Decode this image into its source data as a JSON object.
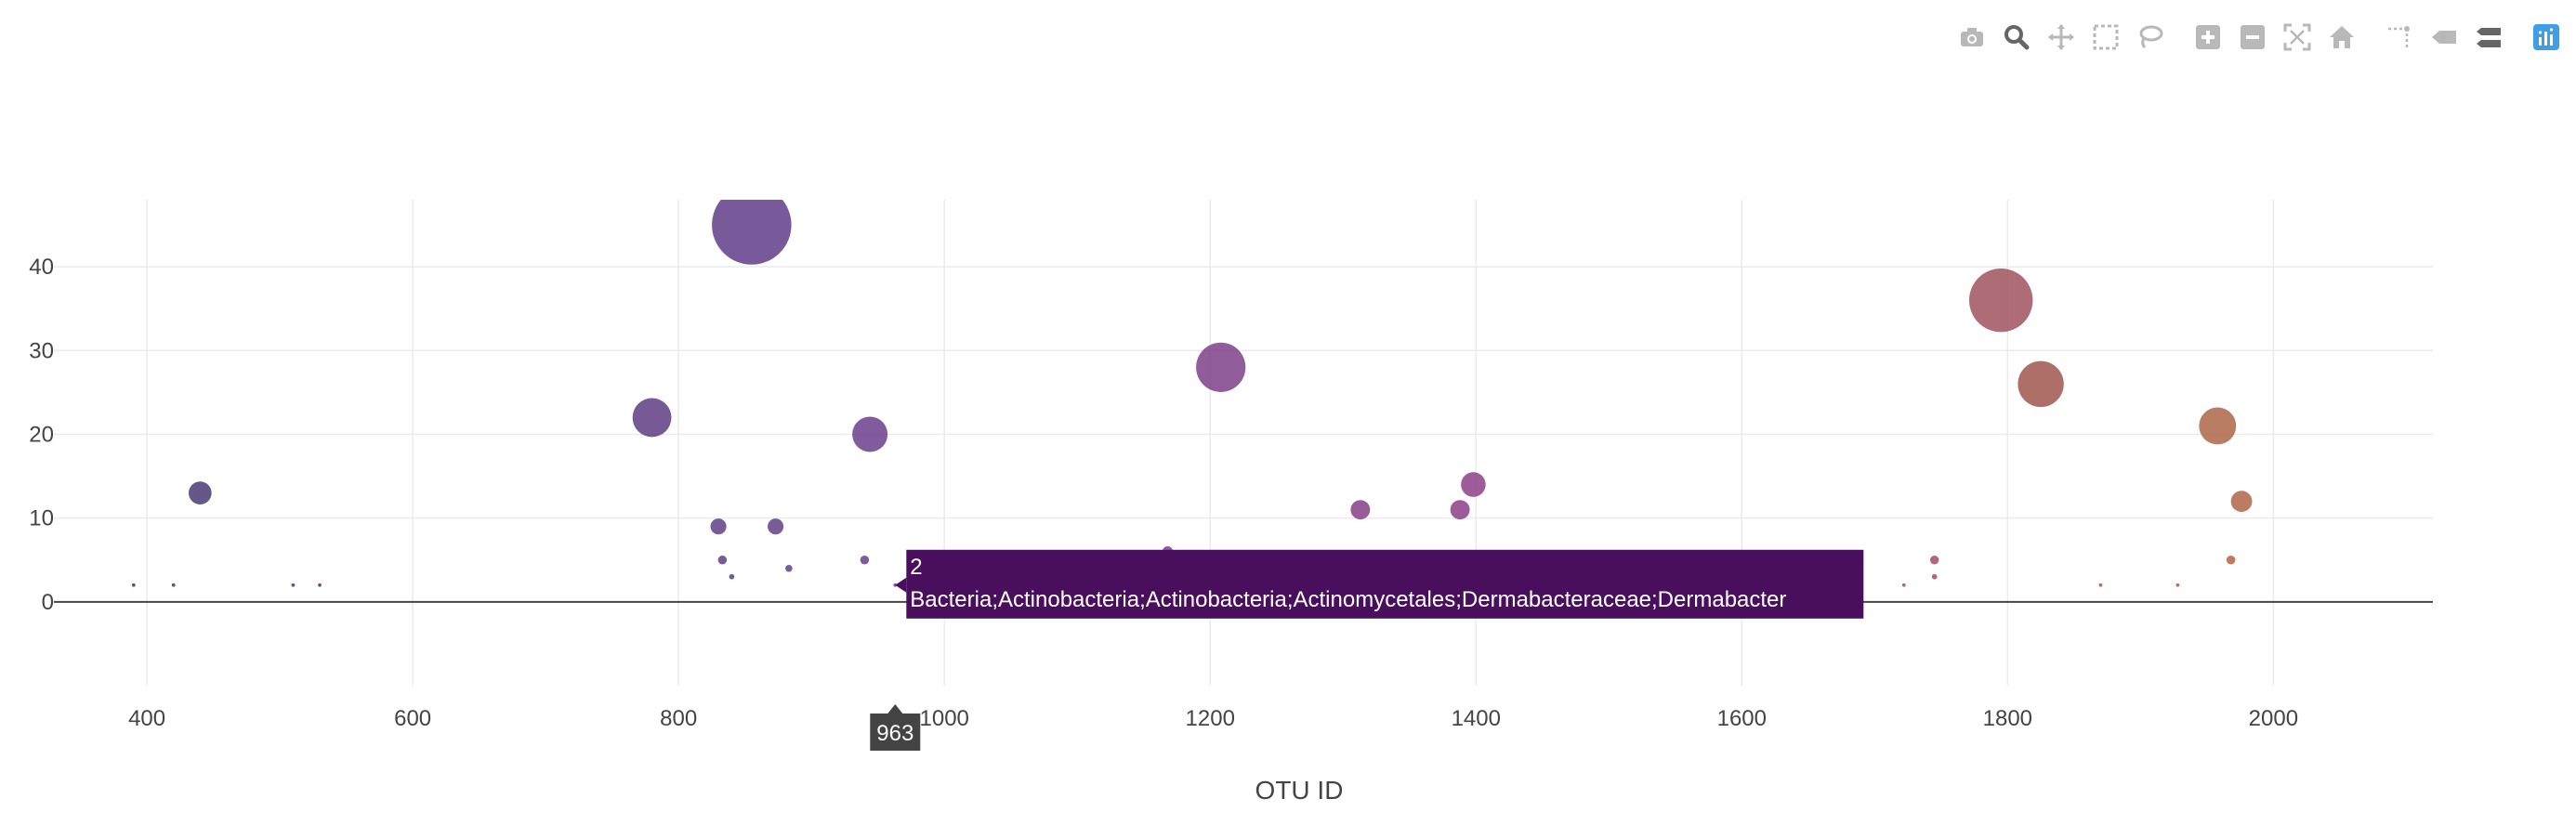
{
  "toolbar": {
    "items": [
      {
        "name": "camera-icon",
        "title": "Download plot as a png"
      },
      {
        "name": "zoom-icon",
        "title": "Zoom",
        "active": true
      },
      {
        "name": "pan-icon",
        "title": "Pan"
      },
      {
        "name": "box-select-icon",
        "title": "Box Select"
      },
      {
        "name": "lasso-select-icon",
        "title": "Lasso Select"
      },
      {
        "name": "zoom-in-icon",
        "title": "Zoom in"
      },
      {
        "name": "zoom-out-icon",
        "title": "Zoom out"
      },
      {
        "name": "autoscale-icon",
        "title": "Autoscale"
      },
      {
        "name": "home-icon",
        "title": "Reset axes"
      },
      {
        "name": "spike-lines-icon",
        "title": "Toggle Spike Lines"
      },
      {
        "name": "hover-closest-icon",
        "title": "Show closest data on hover"
      },
      {
        "name": "hover-compare-icon",
        "title": "Compare data on hover"
      },
      {
        "name": "plotly-logo-icon",
        "title": "Produced with Plotly"
      }
    ],
    "icon_color": "#b8b8b8",
    "active_color": "#666666",
    "logo_color": "#3f9ee8"
  },
  "chart_data": {
    "type": "scatter",
    "mode": "bubble",
    "title": "",
    "xlabel": "OTU ID",
    "ylabel": "",
    "xlim": [
      330,
      2120
    ],
    "ylim": [
      -10,
      48
    ],
    "xticks": [
      400,
      600,
      800,
      1000,
      1200,
      1400,
      1600,
      1800,
      2000
    ],
    "yticks": [
      0,
      10,
      20,
      30,
      40
    ],
    "grid": true,
    "points": [
      {
        "x": 390,
        "y": 2,
        "size": 2,
        "color": "#4a2f6e"
      },
      {
        "x": 420,
        "y": 2,
        "size": 2,
        "color": "#4a2f6e"
      },
      {
        "x": 440,
        "y": 13,
        "size": 13,
        "color": "#4b3a75"
      },
      {
        "x": 510,
        "y": 2,
        "size": 2,
        "color": "#523276"
      },
      {
        "x": 530,
        "y": 2,
        "size": 2,
        "color": "#523276"
      },
      {
        "x": 780,
        "y": 22,
        "size": 22,
        "color": "#5e3d84"
      },
      {
        "x": 830,
        "y": 9,
        "size": 9,
        "color": "#5f3f86"
      },
      {
        "x": 833,
        "y": 5,
        "size": 5,
        "color": "#5f3f86"
      },
      {
        "x": 840,
        "y": 3,
        "size": 3,
        "color": "#5f3f86"
      },
      {
        "x": 855,
        "y": 45,
        "size": 45,
        "color": "#603c88"
      },
      {
        "x": 873,
        "y": 9,
        "size": 9,
        "color": "#623f88"
      },
      {
        "x": 883,
        "y": 4,
        "size": 4,
        "color": "#623f88"
      },
      {
        "x": 940,
        "y": 5,
        "size": 5,
        "color": "#653f8a"
      },
      {
        "x": 944,
        "y": 20,
        "size": 20,
        "color": "#6a3e8c"
      },
      {
        "x": 963,
        "y": 2,
        "size": 2,
        "color": "#6a3e8c"
      },
      {
        "x": 1168,
        "y": 6,
        "size": 6,
        "color": "#7a3f8c"
      },
      {
        "x": 1208,
        "y": 28,
        "size": 28,
        "color": "#7c4088"
      },
      {
        "x": 1313,
        "y": 11,
        "size": 11,
        "color": "#863f8a"
      },
      {
        "x": 1388,
        "y": 11,
        "size": 11,
        "color": "#8b3f88"
      },
      {
        "x": 1398,
        "y": 14,
        "size": 14,
        "color": "#8d3f88"
      },
      {
        "x": 1745,
        "y": 5,
        "size": 5,
        "color": "#a04d6a"
      },
      {
        "x": 1745,
        "y": 3,
        "size": 3,
        "color": "#a04d6a"
      },
      {
        "x": 1722,
        "y": 2,
        "size": 2,
        "color": "#a04d6a"
      },
      {
        "x": 1795,
        "y": 36,
        "size": 36,
        "color": "#a0545e"
      },
      {
        "x": 1825,
        "y": 26,
        "size": 26,
        "color": "#a0564e"
      },
      {
        "x": 1870,
        "y": 2,
        "size": 2,
        "color": "#a6594e"
      },
      {
        "x": 1928,
        "y": 2,
        "size": 2,
        "color": "#a85e4e"
      },
      {
        "x": 1958,
        "y": 21,
        "size": 21,
        "color": "#ad6648"
      },
      {
        "x": 1968,
        "y": 5,
        "size": 5,
        "color": "#b06446"
      },
      {
        "x": 1976,
        "y": 12,
        "size": 12,
        "color": "#b06446"
      }
    ],
    "hover": {
      "x": 963,
      "y": 2,
      "lines": [
        "2",
        "Bacteria;Actinobacteria;Actinobacteria;Actinomycetales;Dermabacteraceae;Dermabacter"
      ],
      "x_label": "963",
      "bg_color": "#4a0f5c",
      "x_label_bg": "#444444"
    }
  }
}
